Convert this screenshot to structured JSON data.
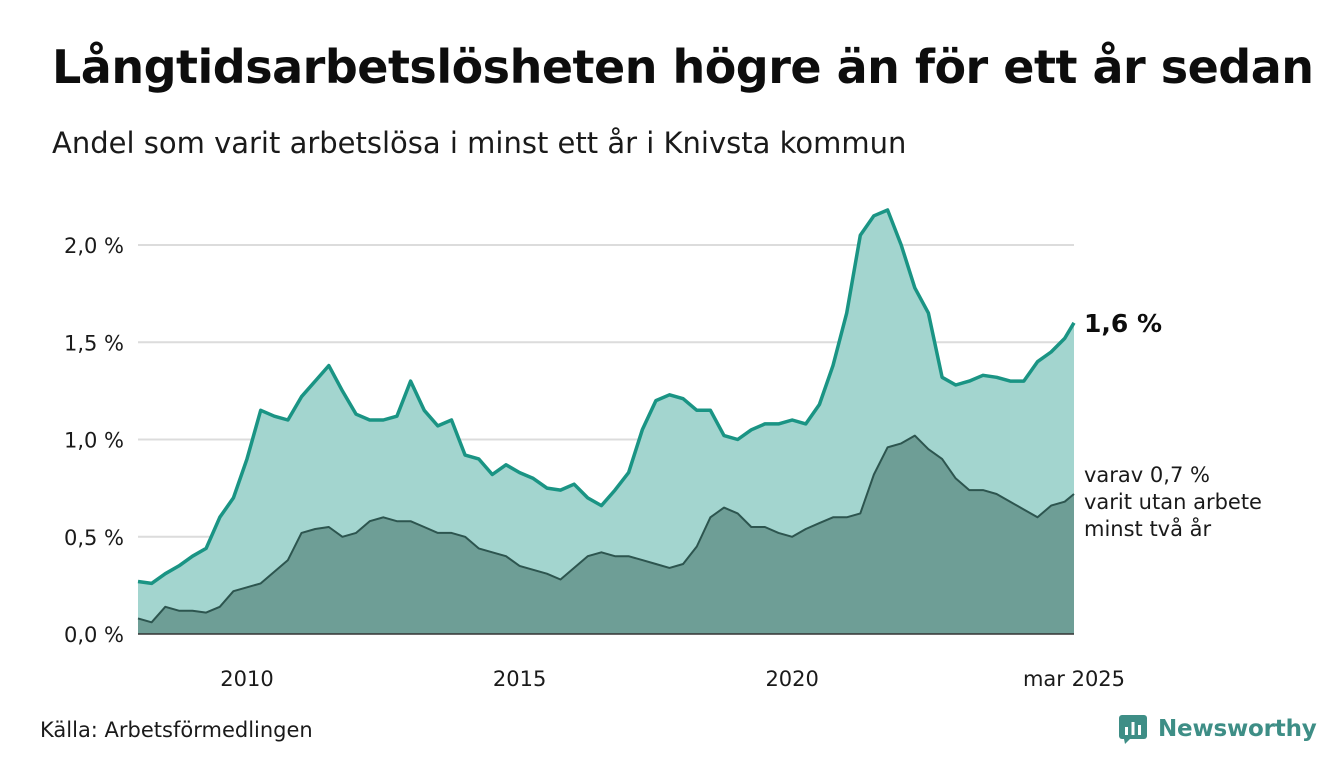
{
  "title": "Långtidsarbetslösheten högre än för ett år sedan",
  "subtitle": "Andel som varit arbetslösa i minst ett år i Knivsta kommun",
  "source": "Källa: Arbetsförmedlingen",
  "brand": "Newsworthy",
  "colors": {
    "area_main": "#a3d5cf",
    "line_main": "#1a9484",
    "area_sub": "#6e9e96",
    "line_sub": "#2d554f",
    "grid": "#dcdcdc",
    "brand": "#3e8e86"
  },
  "chart_data": {
    "type": "area",
    "x_unit": "year",
    "xlim": [
      2008.0,
      2025.17
    ],
    "ylim": [
      0,
      2.2
    ],
    "y_ticks": [
      {
        "value": 0.0,
        "label": "0,0 %"
      },
      {
        "value": 0.5,
        "label": "0,5 %"
      },
      {
        "value": 1.0,
        "label": "1,0 %"
      },
      {
        "value": 1.5,
        "label": "1,5 %"
      },
      {
        "value": 2.0,
        "label": "2,0 %"
      }
    ],
    "x_ticks": [
      {
        "value": 2010,
        "label": "2010"
      },
      {
        "value": 2015,
        "label": "2015"
      },
      {
        "value": 2020,
        "label": "2020"
      },
      {
        "value": 2025.17,
        "label": "mar 2025"
      }
    ],
    "grid": true,
    "series": [
      {
        "values_x": [
          2008.0,
          2008.25,
          2008.5,
          2008.75,
          2009.0,
          2009.25,
          2009.5,
          2009.75,
          2010.0,
          2010.25,
          2010.5,
          2010.75,
          2011.0,
          2011.25,
          2011.5,
          2011.75,
          2012.0,
          2012.25,
          2012.5,
          2012.75,
          2013.0,
          2013.25,
          2013.5,
          2013.75,
          2014.0,
          2014.25,
          2014.5,
          2014.75,
          2015.0,
          2015.25,
          2015.5,
          2015.75,
          2016.0,
          2016.25,
          2016.5,
          2016.75,
          2017.0,
          2017.25,
          2017.5,
          2017.75,
          2018.0,
          2018.25,
          2018.5,
          2018.75,
          2019.0,
          2019.25,
          2019.5,
          2019.75,
          2020.0,
          2020.25,
          2020.5,
          2020.75,
          2021.0,
          2021.25,
          2021.5,
          2021.75,
          2022.0,
          2022.25,
          2022.5,
          2022.75,
          2023.0,
          2023.25,
          2023.5,
          2023.75,
          2024.0,
          2024.25,
          2024.5,
          2024.75,
          2025.0,
          2025.17
        ],
        "values": [
          0.27,
          0.26,
          0.31,
          0.35,
          0.4,
          0.44,
          0.6,
          0.7,
          0.9,
          1.15,
          1.12,
          1.1,
          1.22,
          1.3,
          1.38,
          1.25,
          1.13,
          1.1,
          1.1,
          1.12,
          1.3,
          1.15,
          1.07,
          1.1,
          0.92,
          0.9,
          0.82,
          0.87,
          0.83,
          0.8,
          0.75,
          0.74,
          0.77,
          0.7,
          0.66,
          0.74,
          0.83,
          1.05,
          1.2,
          1.23,
          1.21,
          1.15,
          1.15,
          1.02,
          1.0,
          1.05,
          1.08,
          1.08,
          1.1,
          1.08,
          1.18,
          1.38,
          1.65,
          2.05,
          2.15,
          2.18,
          2.0,
          1.78,
          1.65,
          1.32,
          1.28,
          1.3,
          1.33,
          1.32,
          1.3,
          1.3,
          1.4,
          1.45,
          1.52,
          1.6
        ]
      },
      {
        "values_x": [
          2008.0,
          2008.25,
          2008.5,
          2008.75,
          2009.0,
          2009.25,
          2009.5,
          2009.75,
          2010.0,
          2010.25,
          2010.5,
          2010.75,
          2011.0,
          2011.25,
          2011.5,
          2011.75,
          2012.0,
          2012.25,
          2012.5,
          2012.75,
          2013.0,
          2013.25,
          2013.5,
          2013.75,
          2014.0,
          2014.25,
          2014.5,
          2014.75,
          2015.0,
          2015.25,
          2015.5,
          2015.75,
          2016.0,
          2016.25,
          2016.5,
          2016.75,
          2017.0,
          2017.25,
          2017.5,
          2017.75,
          2018.0,
          2018.25,
          2018.5,
          2018.75,
          2019.0,
          2019.25,
          2019.5,
          2019.75,
          2020.0,
          2020.25,
          2020.5,
          2020.75,
          2021.0,
          2021.25,
          2021.5,
          2021.75,
          2022.0,
          2022.25,
          2022.5,
          2022.75,
          2023.0,
          2023.25,
          2023.5,
          2023.75,
          2024.0,
          2024.25,
          2024.5,
          2024.75,
          2025.0,
          2025.17
        ],
        "values": [
          0.08,
          0.06,
          0.14,
          0.12,
          0.12,
          0.11,
          0.14,
          0.22,
          0.24,
          0.26,
          0.32,
          0.38,
          0.52,
          0.54,
          0.55,
          0.5,
          0.52,
          0.58,
          0.6,
          0.58,
          0.58,
          0.55,
          0.52,
          0.52,
          0.5,
          0.44,
          0.42,
          0.4,
          0.35,
          0.33,
          0.31,
          0.28,
          0.34,
          0.4,
          0.42,
          0.4,
          0.4,
          0.38,
          0.36,
          0.34,
          0.36,
          0.45,
          0.6,
          0.65,
          0.62,
          0.55,
          0.55,
          0.52,
          0.5,
          0.54,
          0.57,
          0.6,
          0.6,
          0.62,
          0.82,
          0.96,
          0.98,
          1.02,
          0.95,
          0.9,
          0.8,
          0.74,
          0.74,
          0.72,
          0.68,
          0.64,
          0.6,
          0.66,
          0.68,
          0.72
        ]
      }
    ],
    "annotations": [
      {
        "label": "1,6 %",
        "x": 2025.17,
        "y": 1.6
      },
      {
        "lines": [
          "varav 0,7 %",
          "varit utan arbete",
          "minst två år"
        ],
        "x": 2025.17,
        "y": 0.72
      }
    ]
  }
}
